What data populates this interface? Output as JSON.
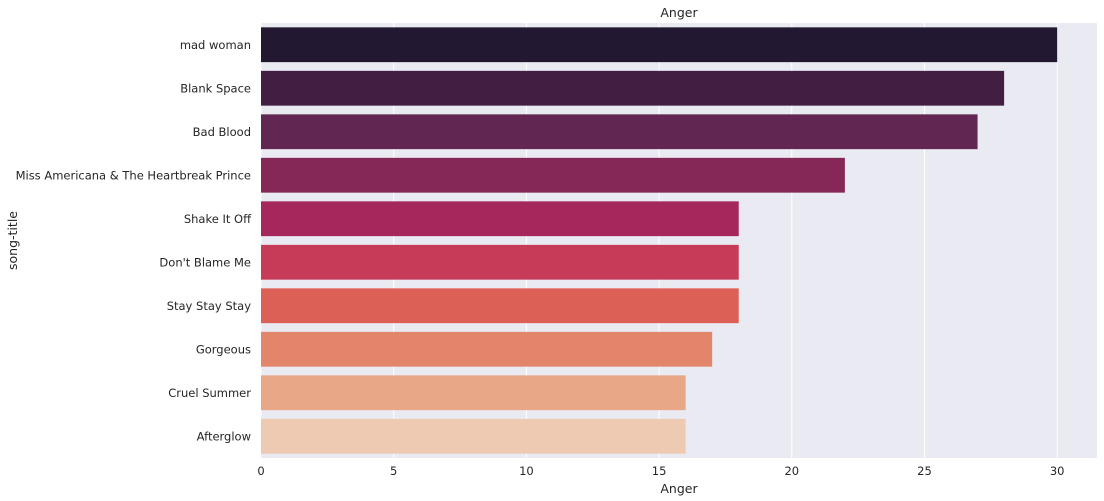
{
  "chart_data": {
    "type": "bar",
    "orientation": "horizontal",
    "title": "Anger",
    "xlabel": "Anger",
    "ylabel": "song-title",
    "xlim": [
      0,
      31.5
    ],
    "xticks": [
      0,
      5,
      10,
      15,
      20,
      25,
      30
    ],
    "grid": true,
    "categories": [
      "mad woman",
      "Blank Space",
      "Bad Blood",
      "Miss Americana & The Heartbreak Prince",
      "Shake It Off",
      "Don't Blame Me",
      "Stay Stay Stay",
      "Gorgeous",
      "Cruel Summer",
      "Afterglow"
    ],
    "values": [
      30,
      28,
      27,
      22,
      18,
      18,
      18,
      17,
      16,
      16
    ],
    "colors": [
      "#221831",
      "#421f42",
      "#612651",
      "#852858",
      "#a5275b",
      "#c53b58",
      "#dc6055",
      "#e2856a",
      "#e8a887",
      "#eecab2"
    ],
    "plot_background": "#eaeaf2",
    "grid_color": "#ffffff"
  }
}
